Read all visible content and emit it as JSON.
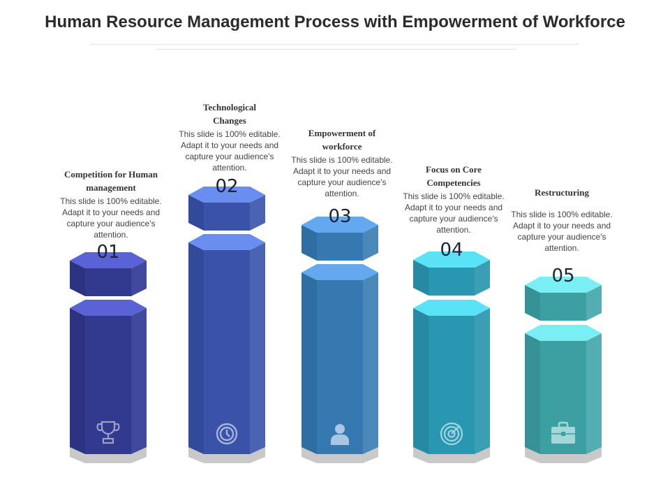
{
  "title": "Human Resource Management Process with Empowerment of Workforce",
  "steps": [
    {
      "number": "01",
      "heading": "Competition for Human management",
      "description": "This slide is 100% editable. Adapt it to your needs and capture your audience's attention.",
      "icon": "trophy-icon",
      "colors": {
        "top": "#5a63d6",
        "front": "#323a8f",
        "side": "#3f4a9e"
      }
    },
    {
      "number": "02",
      "heading": "Technological Changes",
      "description": "This slide is 100% editable. Adapt it to your needs and capture your audience's attention.",
      "icon": "clock-icon",
      "colors": {
        "top": "#6a8df0",
        "front": "#3a52a8",
        "side": "#4a64b4"
      }
    },
    {
      "number": "03",
      "heading": "Empowerment of workforce",
      "description": "This slide is 100% editable. Adapt it to your needs and capture your audience's attention.",
      "icon": "user-icon",
      "colors": {
        "top": "#63a9f0",
        "front": "#3579b0",
        "side": "#4a88ba"
      }
    },
    {
      "number": "04",
      "heading": "Focus on Core Competencies",
      "description": "This slide is 100% editable. Adapt it to your needs and capture your audience's attention.",
      "icon": "target-icon",
      "colors": {
        "top": "#5ae2f7",
        "front": "#2a97b0",
        "side": "#3a9fb4"
      }
    },
    {
      "number": "05",
      "heading": "Restructuring",
      "description": "This slide is 100% editable. Adapt it to your needs and capture your audience's attention.",
      "icon": "briefcase-icon",
      "colors": {
        "top": "#79eff3",
        "front": "#3c9fa1",
        "side": "#52aeb0"
      }
    }
  ]
}
